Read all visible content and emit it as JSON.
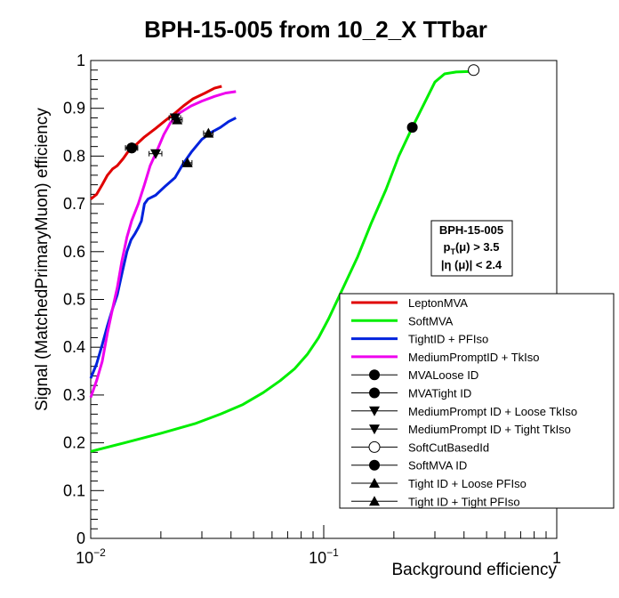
{
  "chart_data": {
    "type": "line",
    "title": "BPH-15-005 from 10_2_X TTbar",
    "xlabel": "Background efficiency",
    "ylabel": "Signal (MatchedPrimaryMuon) efficiency",
    "x_scale": "log",
    "xlim": [
      0.01,
      1
    ],
    "ylim": [
      0,
      1
    ],
    "x_ticks": [
      {
        "value": 0.01,
        "base": "10",
        "exp": "−2"
      },
      {
        "value": 0.1,
        "base": "10",
        "exp": "−1"
      },
      {
        "value": 1,
        "base": "1",
        "exp": ""
      }
    ],
    "y_ticks": [
      "0",
      "0.1",
      "0.2",
      "0.3",
      "0.4",
      "0.5",
      "0.6",
      "0.7",
      "0.8",
      "0.9",
      "1"
    ],
    "info_box": {
      "line1": "BPH-15-005",
      "line2_p": "p",
      "line2_sub": "T",
      "line2_rest": "(μ) > 3.5",
      "line3": "|η (μ)| < 2.4"
    },
    "series": [
      {
        "name": "LeptonMVA",
        "color": "#e00000",
        "points": [
          [
            0.01,
            0.71
          ],
          [
            0.0106,
            0.72
          ],
          [
            0.0112,
            0.74
          ],
          [
            0.0118,
            0.76
          ],
          [
            0.0124,
            0.773
          ],
          [
            0.013,
            0.78
          ],
          [
            0.0138,
            0.795
          ],
          [
            0.0145,
            0.81
          ],
          [
            0.0155,
            0.822
          ],
          [
            0.017,
            0.84
          ],
          [
            0.019,
            0.858
          ],
          [
            0.021,
            0.875
          ],
          [
            0.023,
            0.89
          ],
          [
            0.025,
            0.905
          ],
          [
            0.0275,
            0.92
          ],
          [
            0.031,
            0.932
          ],
          [
            0.034,
            0.942
          ],
          [
            0.0365,
            0.946
          ]
        ]
      },
      {
        "name": "SoftMVA",
        "color": "#00ee00",
        "points": [
          [
            0.01,
            0.182
          ],
          [
            0.014,
            0.2
          ],
          [
            0.02,
            0.22
          ],
          [
            0.028,
            0.24
          ],
          [
            0.036,
            0.26
          ],
          [
            0.045,
            0.28
          ],
          [
            0.055,
            0.305
          ],
          [
            0.065,
            0.33
          ],
          [
            0.075,
            0.355
          ],
          [
            0.085,
            0.385
          ],
          [
            0.095,
            0.42
          ],
          [
            0.105,
            0.46
          ],
          [
            0.12,
            0.52
          ],
          [
            0.14,
            0.59
          ],
          [
            0.16,
            0.66
          ],
          [
            0.185,
            0.73
          ],
          [
            0.21,
            0.8
          ],
          [
            0.24,
            0.86
          ],
          [
            0.27,
            0.91
          ],
          [
            0.3,
            0.955
          ],
          [
            0.33,
            0.972
          ],
          [
            0.37,
            0.976
          ],
          [
            0.42,
            0.977
          ]
        ]
      },
      {
        "name": "TightID + PFIso",
        "color": "#0022dd",
        "points": [
          [
            0.01,
            0.335
          ],
          [
            0.0106,
            0.365
          ],
          [
            0.0112,
            0.405
          ],
          [
            0.0118,
            0.445
          ],
          [
            0.0124,
            0.48
          ],
          [
            0.013,
            0.51
          ],
          [
            0.0137,
            0.56
          ],
          [
            0.0143,
            0.6
          ],
          [
            0.0149,
            0.625
          ],
          [
            0.0155,
            0.638
          ],
          [
            0.016,
            0.65
          ],
          [
            0.0165,
            0.664
          ],
          [
            0.017,
            0.7
          ],
          [
            0.0176,
            0.71
          ],
          [
            0.019,
            0.718
          ],
          [
            0.021,
            0.738
          ],
          [
            0.023,
            0.755
          ],
          [
            0.025,
            0.785
          ],
          [
            0.027,
            0.808
          ],
          [
            0.03,
            0.835
          ],
          [
            0.033,
            0.85
          ],
          [
            0.036,
            0.86
          ],
          [
            0.039,
            0.872
          ],
          [
            0.042,
            0.88
          ]
        ]
      },
      {
        "name": "MediumPromptID + TkIso",
        "color": "#ee00ee",
        "points": [
          [
            0.01,
            0.295
          ],
          [
            0.0106,
            0.33
          ],
          [
            0.0112,
            0.37
          ],
          [
            0.0118,
            0.43
          ],
          [
            0.0124,
            0.48
          ],
          [
            0.013,
            0.525
          ],
          [
            0.0136,
            0.58
          ],
          [
            0.0143,
            0.63
          ],
          [
            0.015,
            0.665
          ],
          [
            0.016,
            0.7
          ],
          [
            0.017,
            0.74
          ],
          [
            0.018,
            0.78
          ],
          [
            0.0192,
            0.81
          ],
          [
            0.0206,
            0.845
          ],
          [
            0.022,
            0.87
          ],
          [
            0.024,
            0.89
          ],
          [
            0.027,
            0.905
          ],
          [
            0.03,
            0.915
          ],
          [
            0.034,
            0.925
          ],
          [
            0.038,
            0.932
          ],
          [
            0.042,
            0.935
          ]
        ]
      }
    ],
    "markers": [
      {
        "name": "MVALoose ID",
        "symbol": "circle",
        "x": 0.015,
        "y": 0.817,
        "xerr": 0.0009
      },
      {
        "name": "MVATight ID",
        "symbol": "circle",
        "x": 0.015,
        "y": 0.817,
        "xerr": 0.0009
      },
      {
        "name": "MediumPrompt ID + Loose TkIso",
        "symbol": "tri-down",
        "x": 0.019,
        "y": 0.805,
        "xerr": 0.0012
      },
      {
        "name": "MediumPrompt ID + Tight TkIso",
        "symbol": "tri-down",
        "x": 0.023,
        "y": 0.88,
        "xerr": 0.0013
      },
      {
        "name": "SoftCutBasedId",
        "symbol": "circle-open",
        "x": 0.44,
        "y": 0.98,
        "xerr": 0
      },
      {
        "name": "SoftMVA ID",
        "symbol": "circle",
        "x": 0.24,
        "y": 0.86,
        "xerr": 0
      },
      {
        "name": "Tight ID + Loose PFIso",
        "symbol": "tri-up",
        "x": 0.0235,
        "y": 0.876,
        "xerr": 0.0012
      },
      {
        "name": "Tight ID + Tight PFIso",
        "symbol": "tri-up",
        "x": 0.026,
        "y": 0.786,
        "xerr": 0.0012
      },
      {
        "name": "Tight ID + Tight PFIso",
        "symbol": "tri-up",
        "x": 0.032,
        "y": 0.848,
        "xerr": 0.0015
      }
    ],
    "legend": [
      {
        "label": "LeptonMVA",
        "kind": "line",
        "color": "#e00000"
      },
      {
        "label": "SoftMVA",
        "kind": "line",
        "color": "#00ee00"
      },
      {
        "label": "TightID + PFIso",
        "kind": "line",
        "color": "#0022dd"
      },
      {
        "label": "MediumPromptID + TkIso",
        "kind": "line",
        "color": "#ee00ee"
      },
      {
        "label": "MVALoose ID",
        "kind": "circle"
      },
      {
        "label": "MVATight ID",
        "kind": "circle"
      },
      {
        "label": "MediumPrompt ID + Loose TkIso",
        "kind": "tri-down"
      },
      {
        "label": "MediumPrompt ID + Tight TkIso",
        "kind": "tri-down"
      },
      {
        "label": "SoftCutBasedId",
        "kind": "circle-open"
      },
      {
        "label": "SoftMVA ID",
        "kind": "circle"
      },
      {
        "label": "Tight ID + Loose PFIso",
        "kind": "tri-up"
      },
      {
        "label": "Tight ID + Tight PFIso",
        "kind": "tri-up"
      }
    ],
    "legend_position": "bottom-right",
    "grid": false
  }
}
